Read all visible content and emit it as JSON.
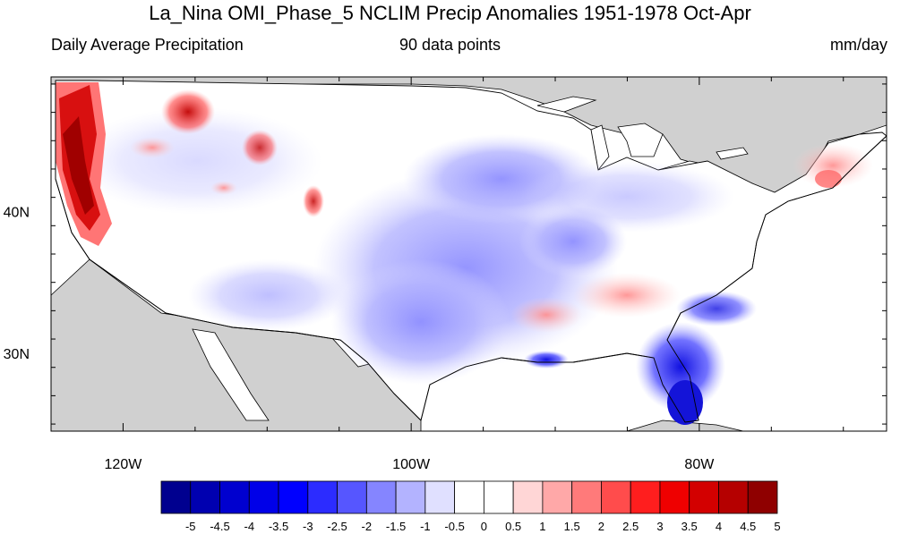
{
  "title": "La_Nina OMI_Phase_5 NCLIM Precip Anomalies 1951-1978 Oct-Apr",
  "subtitle_left": "Daily Average Precipitation",
  "subtitle_center": "90 data points",
  "subtitle_right": "mm/day",
  "map": {
    "lon_range": [
      -125,
      -67
    ],
    "lat_range": [
      24.5,
      49.5
    ],
    "lon_ticks": [
      {
        "value": -120,
        "label": "120W"
      },
      {
        "value": -100,
        "label": "100W"
      },
      {
        "value": -80,
        "label": "80W"
      }
    ],
    "lat_ticks": [
      {
        "value": 30,
        "label": "30N"
      },
      {
        "value": 40,
        "label": "40N"
      }
    ]
  },
  "colorbar": {
    "labels": [
      "-5",
      "-4.5",
      "-4",
      "-3.5",
      "-3",
      "-2.5",
      "-2",
      "-1.5",
      "-1",
      "-0.5",
      "0",
      "0.5",
      "1",
      "1.5",
      "2",
      "2.5",
      "3",
      "3.5",
      "4",
      "4.5",
      "5"
    ],
    "colors": [
      "#00008f",
      "#0000b0",
      "#0000cf",
      "#0000e8",
      "#0000ff",
      "#2c2cff",
      "#5656ff",
      "#8585ff",
      "#b3b3ff",
      "#e0e0ff",
      "#ffffff",
      "#ffffff",
      "#ffd6d6",
      "#ffa8a8",
      "#ff7a7a",
      "#ff4c4c",
      "#ff1e1e",
      "#ef0000",
      "#d30000",
      "#b50000",
      "#8f0000"
    ]
  }
}
